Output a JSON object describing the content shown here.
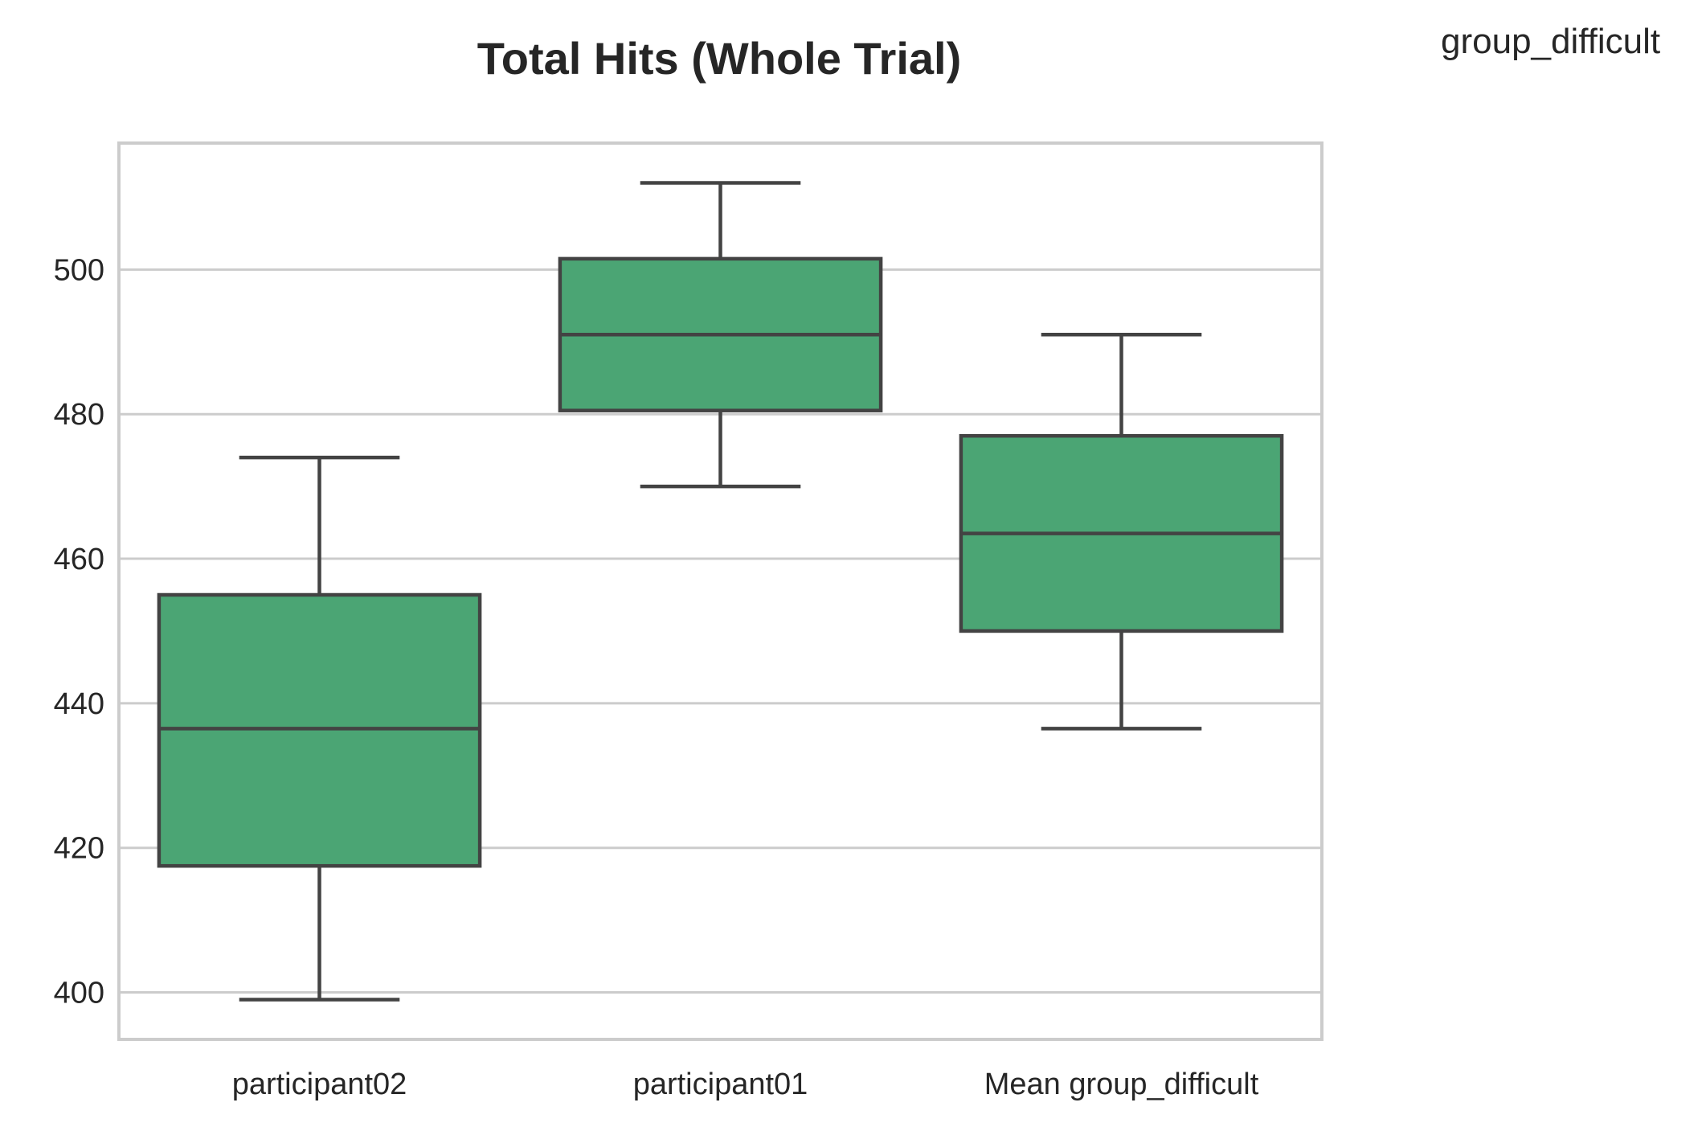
{
  "legend_label": "group_difficult",
  "chart_data": {
    "type": "box",
    "title": "Total Hits (Whole Trial)",
    "xlabel": "",
    "ylabel": "",
    "categories": [
      "participant02",
      "participant01",
      "Mean group_difficult"
    ],
    "boxes": [
      {
        "category": "participant02",
        "whisker_low": 399,
        "q1": 417.5,
        "median": 436.5,
        "q3": 455,
        "whisker_high": 474
      },
      {
        "category": "participant01",
        "whisker_low": 470,
        "q1": 480.5,
        "median": 491,
        "q3": 501.5,
        "whisker_high": 512
      },
      {
        "category": "Mean group_difficult",
        "whisker_low": 436.5,
        "q1": 450,
        "median": 463.5,
        "q3": 477,
        "whisker_high": 491
      }
    ],
    "yticks": [
      400,
      420,
      440,
      460,
      480,
      500
    ],
    "ylim": [
      393.5,
      517.5
    ],
    "grid": true,
    "box_color": "#4ba574",
    "line_color": "#434343",
    "grid_color": "#cccccc"
  }
}
